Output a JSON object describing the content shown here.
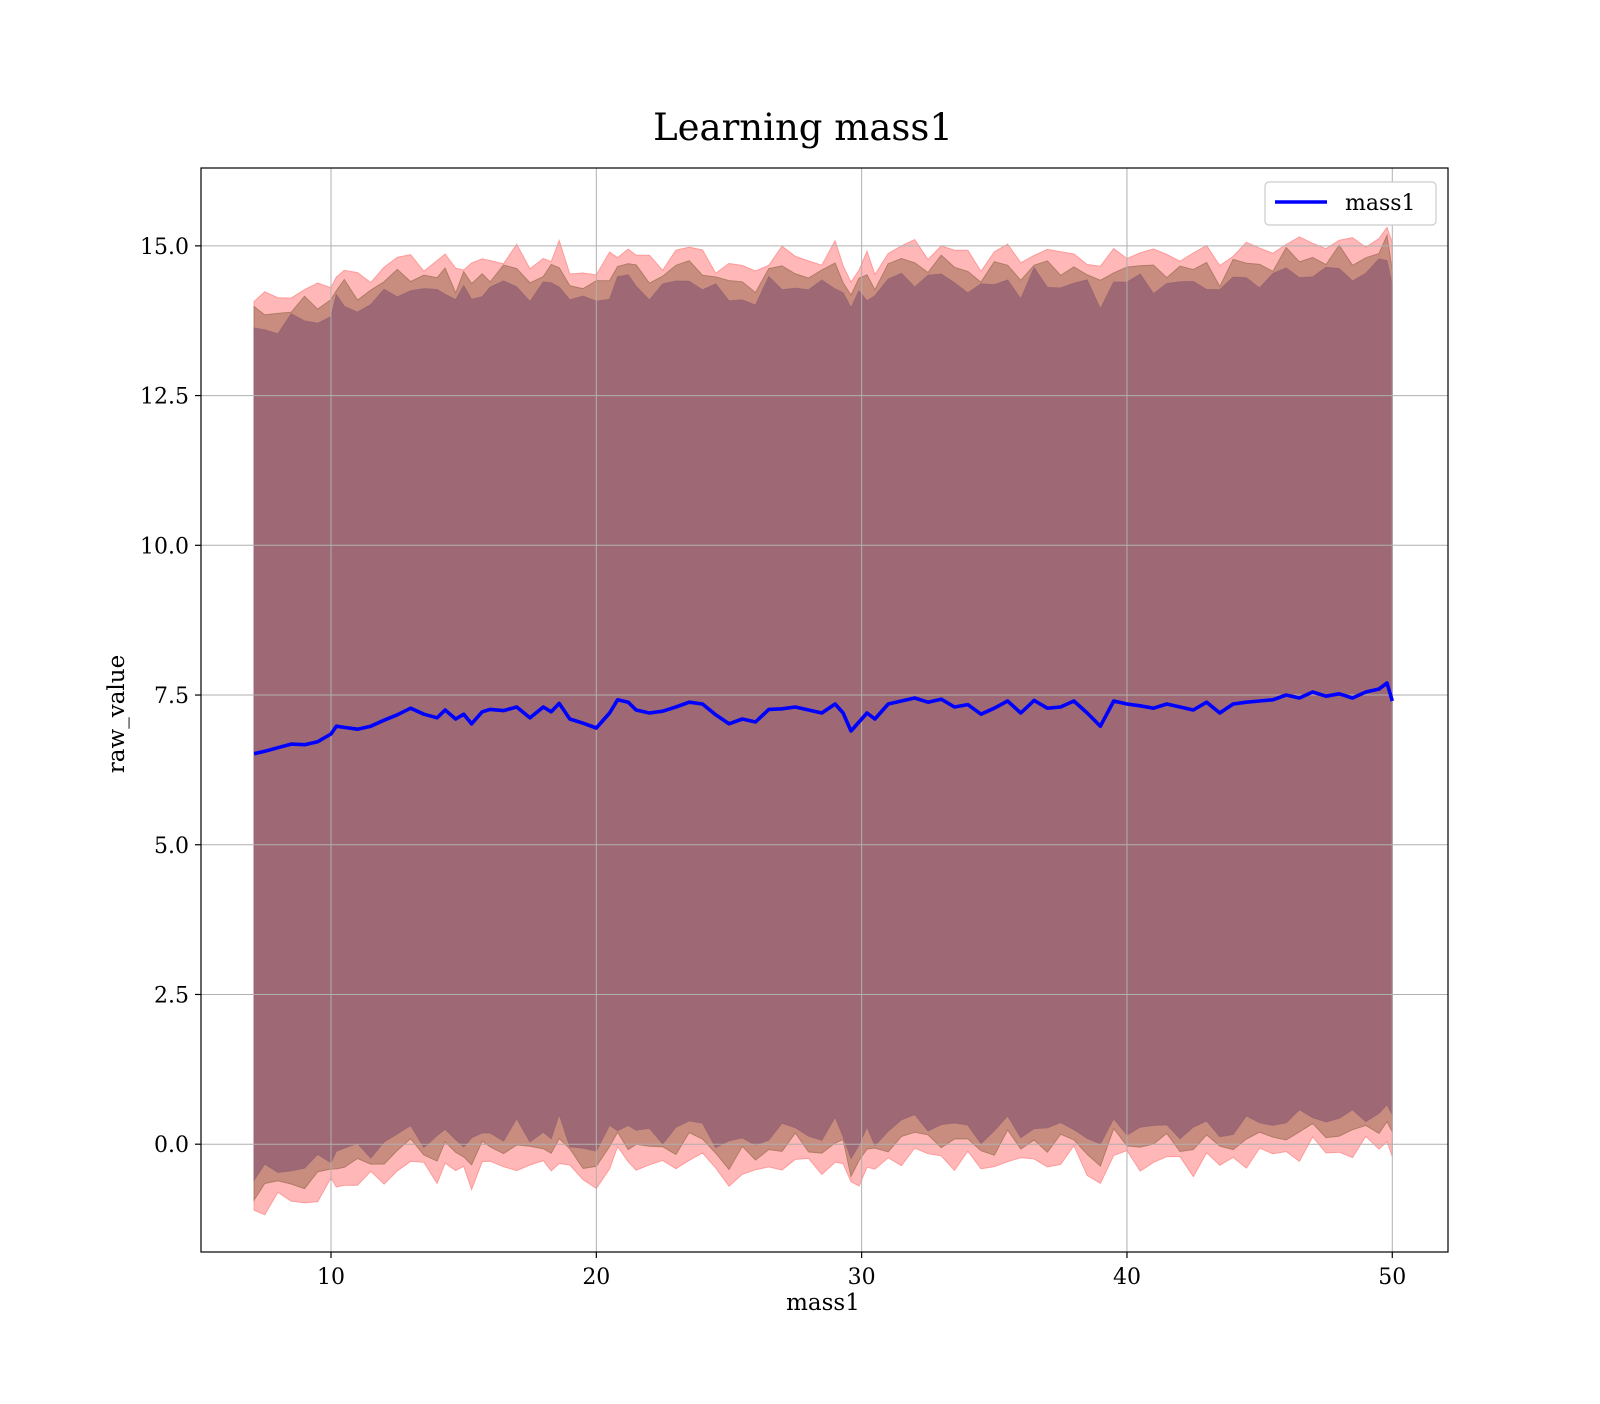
{
  "chart_data": {
    "type": "line",
    "title": "Learning mass1",
    "xlabel": "mass1",
    "ylabel": "raw_value",
    "xlim": [
      5.1,
      52.1
    ],
    "ylim": [
      -1.8,
      16.3
    ],
    "x_ticks": [
      10,
      20,
      30,
      40,
      50
    ],
    "x_tick_labels": [
      "10",
      "20",
      "30",
      "40",
      "50"
    ],
    "y_ticks": [
      0.0,
      2.5,
      5.0,
      7.5,
      10.0,
      12.5,
      15.0
    ],
    "y_tick_labels": [
      "0.0",
      "2.5",
      "5.0",
      "7.5",
      "10.0",
      "12.5",
      "15.0"
    ],
    "grid": true,
    "legend_position": "top-right",
    "series": [
      {
        "name": "mass1",
        "color": "#0000ff",
        "x": [
          7.1,
          7.5,
          8.0,
          8.5,
          9.0,
          9.5,
          10.0,
          10.2,
          10.5,
          11.0,
          11.5,
          12.0,
          12.5,
          13.0,
          13.5,
          14.0,
          14.3,
          14.7,
          15.0,
          15.3,
          15.7,
          16.0,
          16.5,
          17.0,
          17.5,
          18.0,
          18.3,
          18.6,
          19.0,
          19.5,
          20.0,
          20.5,
          20.8,
          21.2,
          21.5,
          22.0,
          22.5,
          23.0,
          23.5,
          24.0,
          24.5,
          25.0,
          25.5,
          26.0,
          26.5,
          27.0,
          27.5,
          28.0,
          28.5,
          29.0,
          29.3,
          29.6,
          29.9,
          30.2,
          30.5,
          31.0,
          31.5,
          32.0,
          32.5,
          33.0,
          33.5,
          34.0,
          34.5,
          35.0,
          35.5,
          36.0,
          36.5,
          37.0,
          37.5,
          38.0,
          38.5,
          39.0,
          39.5,
          40.0,
          40.5,
          41.0,
          41.5,
          42.0,
          42.5,
          43.0,
          43.5,
          44.0,
          44.5,
          45.0,
          45.5,
          46.0,
          46.5,
          47.0,
          47.5,
          48.0,
          48.5,
          49.0,
          49.5,
          49.8,
          50.0
        ],
        "y": [
          6.52,
          6.56,
          6.62,
          6.68,
          6.67,
          6.72,
          6.85,
          6.98,
          6.96,
          6.93,
          6.98,
          7.08,
          7.17,
          7.28,
          7.18,
          7.12,
          7.25,
          7.1,
          7.18,
          7.02,
          7.22,
          7.26,
          7.24,
          7.3,
          7.12,
          7.3,
          7.22,
          7.36,
          7.1,
          7.03,
          6.95,
          7.2,
          7.42,
          7.38,
          7.25,
          7.2,
          7.23,
          7.3,
          7.38,
          7.35,
          7.17,
          7.02,
          7.1,
          7.05,
          7.26,
          7.27,
          7.3,
          7.25,
          7.2,
          7.35,
          7.2,
          6.9,
          7.05,
          7.2,
          7.1,
          7.35,
          7.4,
          7.45,
          7.38,
          7.43,
          7.3,
          7.34,
          7.18,
          7.28,
          7.4,
          7.2,
          7.41,
          7.28,
          7.3,
          7.4,
          7.2,
          6.98,
          7.4,
          7.35,
          7.32,
          7.28,
          7.35,
          7.3,
          7.25,
          7.38,
          7.2,
          7.35,
          7.38,
          7.4,
          7.42,
          7.5,
          7.45,
          7.55,
          7.48,
          7.52,
          7.45,
          7.55,
          7.6,
          7.7,
          7.4
        ]
      }
    ],
    "bands": [
      {
        "name": "",
        "fill": "#ff9999",
        "opacity": 0.7,
        "lower_offset": -7.6,
        "upper_offset": 7.55
      },
      {
        "name": "",
        "fill": "#b07a66",
        "opacity": 0.7,
        "lower_offset": -7.3,
        "upper_offset": 7.3
      },
      {
        "name": "",
        "fill": "#9a6674",
        "opacity": 0.92,
        "lower_offset": -7.05,
        "upper_offset": 7.05
      }
    ]
  }
}
